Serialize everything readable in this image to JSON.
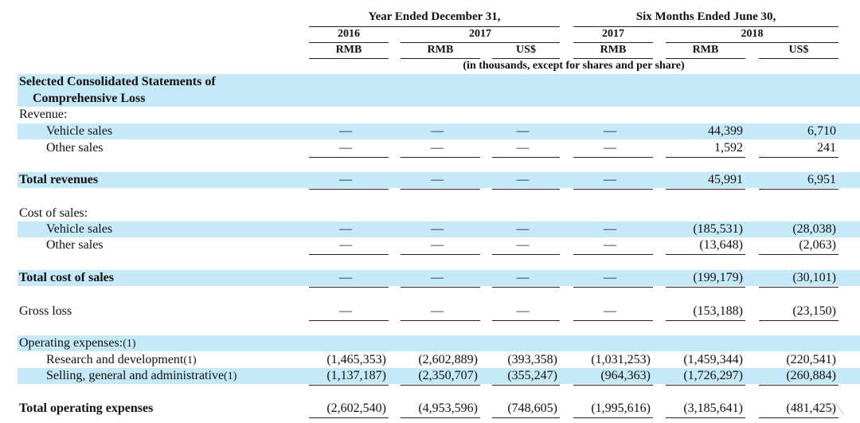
{
  "header": {
    "group1": "Year Ended December 31,",
    "group2": "Six Months Ended June 30,",
    "years": [
      "2016",
      "2017",
      "2017",
      "2018"
    ],
    "currencies": [
      "RMB",
      "RMB",
      "US$",
      "RMB",
      "RMB",
      "US$"
    ],
    "note": "(in thousands, except for shares and per share)"
  },
  "section_title": "Selected Consolidated Statements of",
  "section_title2": "Comprehensive Loss",
  "dash": "—",
  "rows": {
    "revenue": {
      "label": "Revenue:"
    },
    "vehicle_sales": {
      "label": "Vehicle sales",
      "values": [
        "—",
        "—",
        "—",
        "—",
        "44,399",
        "6,710"
      ]
    },
    "other_sales": {
      "label": "Other sales",
      "values": [
        "—",
        "—",
        "—",
        "—",
        "1,592",
        "241"
      ]
    },
    "total_revenues": {
      "label": "Total revenues",
      "values": [
        "—",
        "—",
        "—",
        "—",
        "45,991",
        "6,951"
      ]
    },
    "cost_of_sales": {
      "label": "Cost of sales:"
    },
    "cos_vehicle": {
      "label": "Vehicle sales",
      "values": [
        "—",
        "—",
        "—",
        "—",
        "(185,531)",
        "(28,038)"
      ]
    },
    "cos_other": {
      "label": "Other sales",
      "values": [
        "—",
        "—",
        "—",
        "—",
        "(13,648)",
        "(2,063)"
      ]
    },
    "total_cost_of_sales": {
      "label": "Total cost of sales",
      "values": [
        "—",
        "—",
        "—",
        "—",
        "(199,179)",
        "(30,101)"
      ]
    },
    "gross_loss": {
      "label": "Gross loss",
      "values": [
        "—",
        "—",
        "—",
        "—",
        "(153,188)",
        "(23,150)"
      ]
    },
    "operating_expenses": {
      "label": "Operating expenses:",
      "sup": "(1)"
    },
    "rnd": {
      "label": "Research and development",
      "sup": "(1)",
      "values": [
        "(1,465,353)",
        "(2,602,889)",
        "(393,358)",
        "(1,031,253)",
        "(1,459,344)",
        "(220,541)"
      ]
    },
    "sga": {
      "label": "Selling, general and administrative",
      "sup": "(1)",
      "values": [
        "(1,137,187)",
        "(2,350,707)",
        "(355,247)",
        "(964,363)",
        "(1,726,297)",
        "(260,884)"
      ]
    },
    "total_opex": {
      "label": "Total operating expenses",
      "values": [
        "(2,602,540)",
        "(4,953,596)",
        "(748,605)",
        "(1,995,616)",
        "(3,185,641)",
        "(481,425)"
      ]
    }
  }
}
